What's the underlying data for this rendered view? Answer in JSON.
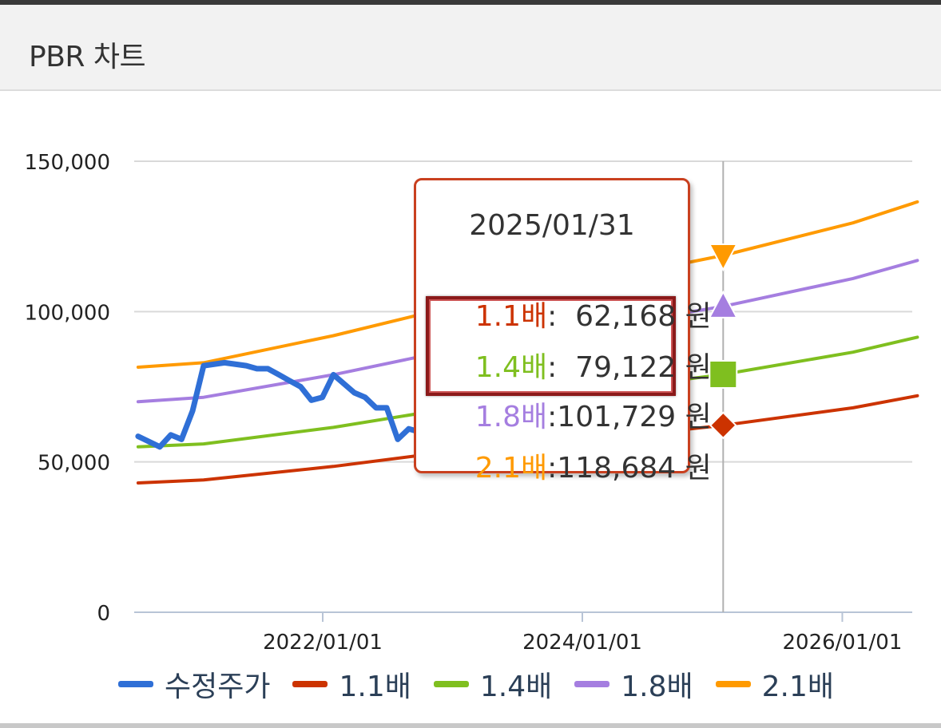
{
  "header": {
    "title": "PBR 차트"
  },
  "chart_data": {
    "type": "line",
    "title": "PBR 차트",
    "xlabel": "",
    "ylabel": "",
    "ylim": [
      0,
      150000
    ],
    "y_ticks": [
      "0",
      "50,000",
      "100,000",
      "150,000"
    ],
    "x_ticks": [
      "2022/01/01",
      "2024/01/01",
      "2026/01/01"
    ],
    "grid": true,
    "legend_position": "bottom",
    "series": [
      {
        "name": "수정주가",
        "color": "#2f6fd6",
        "x": [
          "2020/07/31",
          "2020/09/30",
          "2020/10/31",
          "2020/11/30",
          "2020/12/31",
          "2021/01/31",
          "2021/03/31",
          "2021/05/31",
          "2021/06/30",
          "2021/07/31",
          "2021/08/31",
          "2021/09/30",
          "2021/10/31",
          "2021/11/30",
          "2021/12/31",
          "2022/01/31",
          "2022/03/31",
          "2022/04/30",
          "2022/05/31",
          "2022/06/30",
          "2022/07/31",
          "2022/08/31",
          "2022/09/30",
          "2022/10/31"
        ],
        "values": [
          58500,
          55000,
          59000,
          57500,
          67000,
          82000,
          83000,
          82000,
          81000,
          81000,
          79000,
          77000,
          75000,
          70500,
          71500,
          79000,
          73000,
          71500,
          68000,
          68000,
          57500,
          61000,
          60000,
          57500
        ]
      },
      {
        "name": "1.1배",
        "color": "#cc3300",
        "x": [
          "2020/07/31",
          "2021/01/31",
          "2022/01/31",
          "2023/01/31",
          "2024/01/31",
          "2025/01/31",
          "2026/01/31",
          "2026/07/31"
        ],
        "values": [
          43000,
          44000,
          48500,
          54000,
          57500,
          62168,
          68000,
          72000
        ]
      },
      {
        "name": "1.4배",
        "color": "#7fbf1f",
        "x": [
          "2020/07/31",
          "2021/01/31",
          "2022/01/31",
          "2023/01/31",
          "2024/01/31",
          "2025/01/31",
          "2026/01/31",
          "2026/07/31"
        ],
        "values": [
          55000,
          56000,
          61500,
          68500,
          73500,
          79122,
          86500,
          91500
        ]
      },
      {
        "name": "1.8배",
        "color": "#a57ee0",
        "x": [
          "2020/07/31",
          "2021/01/31",
          "2022/01/31",
          "2023/01/31",
          "2024/01/31",
          "2025/01/31",
          "2026/01/31",
          "2026/07/31"
        ],
        "values": [
          70000,
          71500,
          79000,
          88000,
          94500,
          101729,
          111000,
          117000
        ]
      },
      {
        "name": "2.1배",
        "color": "#ff9a00",
        "x": [
          "2020/07/31",
          "2021/01/31",
          "2022/01/31",
          "2023/01/31",
          "2024/01/31",
          "2025/01/31",
          "2026/01/31",
          "2026/07/31"
        ],
        "values": [
          81500,
          83000,
          92000,
          102500,
          110000,
          118684,
          129500,
          136500
        ]
      }
    ],
    "highlight_x": "2025/01/31"
  },
  "tooltip": {
    "date": "2025/01/31",
    "rows": [
      {
        "label": "1.1배",
        "sep": ":  ",
        "value": "62,168",
        "unit": " 원",
        "color": "#cc3300"
      },
      {
        "label": "1.4배",
        "sep": ":  ",
        "value": "79,122",
        "unit": " 원",
        "color": "#7fbf1f"
      },
      {
        "label": "1.8배",
        "sep": ":",
        "value": "101,729",
        "unit": " 원",
        "color": "#a57ee0"
      },
      {
        "label": "2.1배",
        "sep": ":",
        "value": "118,684",
        "unit": " 원",
        "color": "#ff9a00"
      }
    ]
  },
  "legend": {
    "items": [
      {
        "label": "수정주가",
        "color": "#2f6fd6"
      },
      {
        "label": "1.1배",
        "color": "#cc3300"
      },
      {
        "label": "1.4배",
        "color": "#7fbf1f"
      },
      {
        "label": "1.8배",
        "color": "#a57ee0"
      },
      {
        "label": "2.1배",
        "color": "#ff9a00"
      }
    ]
  }
}
